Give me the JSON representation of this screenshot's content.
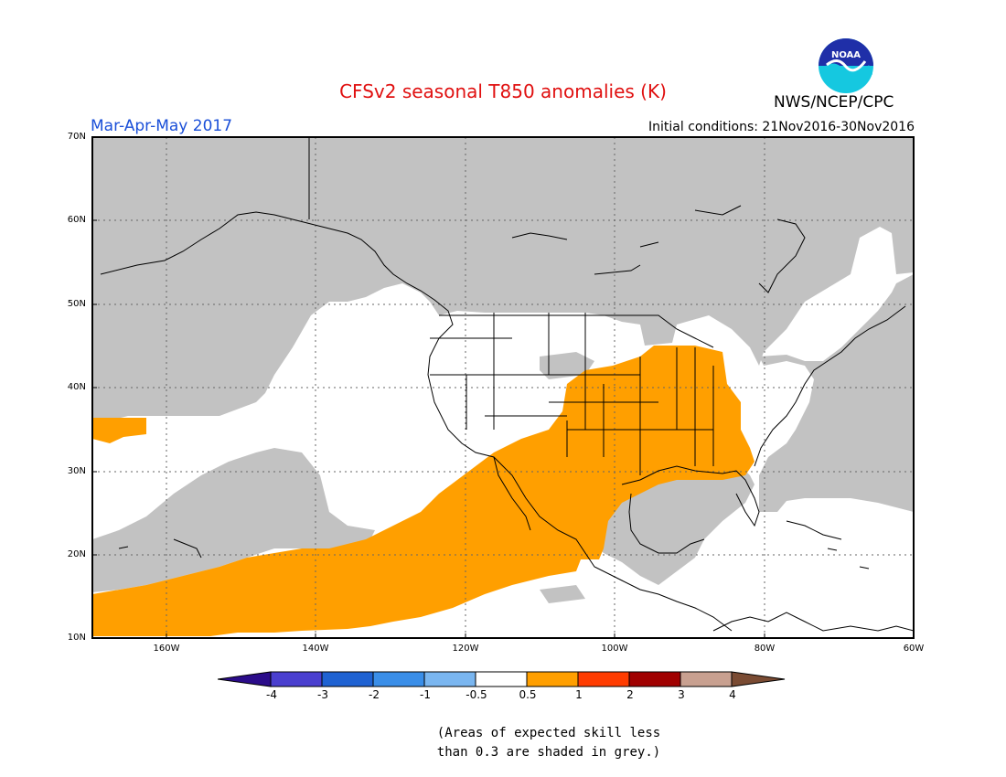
{
  "header": {
    "title": "CFSv2 seasonal T850 anomalies (K)",
    "season": "Mar-Apr-May 2017",
    "initial_conditions": "Initial conditions: 21Nov2016-30Nov2016",
    "agency": "NWS/NCEP/CPC",
    "logo_text": "NOAA"
  },
  "map": {
    "projection": "lat-lon",
    "lon_range_deg": [
      -170,
      -60
    ],
    "lat_range_deg": [
      10,
      70
    ],
    "lat_labels": [
      "70N",
      "60N",
      "50N",
      "40N",
      "30N",
      "20N",
      "10N"
    ],
    "lon_labels": [
      "160W",
      "140W",
      "120W",
      "100W",
      "80W",
      "60W"
    ],
    "colors": {
      "land_skill_low": "#c2c2c2",
      "anomaly_0_5_to_1": "#ff9f00",
      "neutral": "#ffffff",
      "coastline": "#000000"
    }
  },
  "colorbar": {
    "colors": [
      "#2b0c8a",
      "#4a3fcf",
      "#1f62d2",
      "#3a8ee8",
      "#7ab6f0",
      "#ffffff",
      "#ff9f00",
      "#ff3c00",
      "#a00000",
      "#c8a090",
      "#7a4b33"
    ],
    "labels": [
      "-4",
      "-3",
      "-2",
      "-1",
      "-0.5",
      "0.5",
      "1",
      "2",
      "3",
      "4"
    ]
  },
  "note": {
    "line1": "(Areas of expected skill less",
    "line2": "than 0.3 are shaded in grey.)"
  }
}
